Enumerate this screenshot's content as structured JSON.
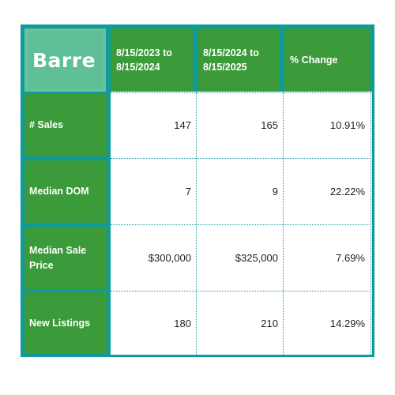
{
  "title": "Barre",
  "columns": [
    "8/15/2023 to 8/15/2024",
    "8/15/2024 to 8/15/2025",
    "% Change"
  ],
  "columns_lines": [
    [
      "8/15/2023 to",
      "8/15/2024"
    ],
    [
      "8/15/2024 to",
      "8/15/2025"
    ],
    [
      "% Change"
    ]
  ],
  "rows": [
    {
      "label": "# Sales",
      "label_lines": [
        "# Sales"
      ],
      "values": [
        "147",
        "165",
        "10.91%"
      ]
    },
    {
      "label": "Median DOM",
      "label_lines": [
        "Median DOM"
      ],
      "values": [
        "7",
        "9",
        "22.22%"
      ]
    },
    {
      "label": "Median Sale Price",
      "label_lines": [
        "Median Sale",
        "Price"
      ],
      "values": [
        "$300,000",
        "$325,000",
        "7.69%"
      ]
    },
    {
      "label": "New Listings",
      "label_lines": [
        "New Listings"
      ],
      "values": [
        "180",
        "210",
        "14.29%"
      ]
    }
  ],
  "colors": {
    "border_teal": "#0f9a9c",
    "header_green": "#3b9a3a",
    "title_green": "#5fbf96",
    "dotted_grid": "#1b9b9e"
  }
}
